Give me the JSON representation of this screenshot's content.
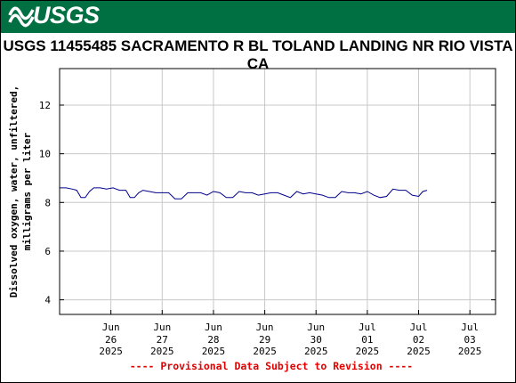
{
  "header": {
    "logo_text": "USGS",
    "brand_color": "#006f41"
  },
  "chart_data": {
    "type": "line",
    "title": "USGS 11455485 SACRAMENTO R BL TOLAND LANDING NR RIO VISTA CA",
    "ylabel_line1": "Dissolved oxygen, water, unfiltered,",
    "ylabel_line2": "milligrams per liter",
    "xlabel": "",
    "ylim": [
      3.4,
      13.5
    ],
    "yticks": [
      4,
      6,
      8,
      10,
      12
    ],
    "ytick_labels": [
      "4",
      "6",
      "8",
      "10",
      "12"
    ],
    "xlim": [
      "2025-06-25T00:00",
      "2025-07-03T12:00"
    ],
    "xticks": [
      {
        "month": "Jun",
        "day": "26",
        "year": "2025"
      },
      {
        "month": "Jun",
        "day": "27",
        "year": "2025"
      },
      {
        "month": "Jun",
        "day": "28",
        "year": "2025"
      },
      {
        "month": "Jun",
        "day": "29",
        "year": "2025"
      },
      {
        "month": "Jun",
        "day": "30",
        "year": "2025"
      },
      {
        "month": "Jul",
        "day": "01",
        "year": "2025"
      },
      {
        "month": "Jul",
        "day": "02",
        "year": "2025"
      },
      {
        "month": "Jul",
        "day": "03",
        "year": "2025"
      }
    ],
    "grid": true,
    "line_color": "#00008b",
    "series": [
      {
        "x": [
          "2025-06-25T00:00",
          "2025-06-25T03:00",
          "2025-06-25T06:00",
          "2025-06-25T08:00",
          "2025-06-25T10:00",
          "2025-06-25T12:00",
          "2025-06-25T14:00",
          "2025-06-25T16:00",
          "2025-06-25T19:00",
          "2025-06-25T22:00",
          "2025-06-26T01:00",
          "2025-06-26T04:00",
          "2025-06-26T07:00",
          "2025-06-26T09:00",
          "2025-06-26T11:00",
          "2025-06-26T13:00",
          "2025-06-26T15:00",
          "2025-06-26T18:00",
          "2025-06-26T21:00",
          "2025-06-27T00:00",
          "2025-06-27T03:00",
          "2025-06-27T06:00",
          "2025-06-27T09:00",
          "2025-06-27T12:00",
          "2025-06-27T15:00",
          "2025-06-27T18:00",
          "2025-06-27T21:00",
          "2025-06-28T00:00",
          "2025-06-28T03:00",
          "2025-06-28T06:00",
          "2025-06-28T09:00",
          "2025-06-28T12:00",
          "2025-06-28T15:00",
          "2025-06-28T18:00",
          "2025-06-28T21:00",
          "2025-06-29T00:00",
          "2025-06-29T03:00",
          "2025-06-29T06:00",
          "2025-06-29T09:00",
          "2025-06-29T12:00",
          "2025-06-29T15:00",
          "2025-06-29T18:00",
          "2025-06-29T21:00",
          "2025-06-30T00:00",
          "2025-06-30T03:00",
          "2025-06-30T06:00",
          "2025-06-30T09:00",
          "2025-06-30T12:00",
          "2025-06-30T15:00",
          "2025-06-30T18:00",
          "2025-06-30T21:00",
          "2025-07-01T00:00",
          "2025-07-01T03:00",
          "2025-07-01T06:00",
          "2025-07-01T09:00",
          "2025-07-01T12:00",
          "2025-07-01T15:00",
          "2025-07-01T18:00",
          "2025-07-01T21:00",
          "2025-07-02T00:00",
          "2025-07-02T02:00",
          "2025-07-02T04:00"
        ],
        "values": [
          8.6,
          8.6,
          8.55,
          8.5,
          8.2,
          8.2,
          8.45,
          8.6,
          8.6,
          8.55,
          8.6,
          8.5,
          8.5,
          8.2,
          8.2,
          8.4,
          8.5,
          8.45,
          8.4,
          8.4,
          8.4,
          8.15,
          8.15,
          8.4,
          8.4,
          8.4,
          8.3,
          8.45,
          8.4,
          8.2,
          8.2,
          8.45,
          8.4,
          8.4,
          8.3,
          8.35,
          8.4,
          8.4,
          8.3,
          8.2,
          8.45,
          8.35,
          8.4,
          8.35,
          8.3,
          8.2,
          8.2,
          8.45,
          8.4,
          8.4,
          8.35,
          8.45,
          8.3,
          8.2,
          8.25,
          8.55,
          8.5,
          8.5,
          8.3,
          8.25,
          8.45,
          8.5
        ]
      }
    ]
  },
  "footer": {
    "provisional_text": "---- Provisional Data Subject to Revision ----",
    "provisional_color": "#e00000"
  }
}
